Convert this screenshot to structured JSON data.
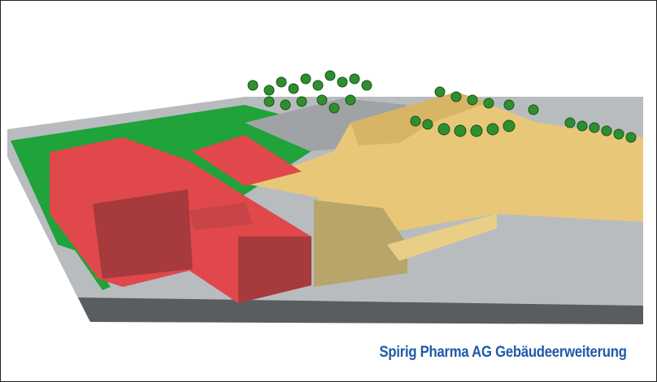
{
  "caption": "Spirig Pharma AG Gebäudeerweiterung"
}
